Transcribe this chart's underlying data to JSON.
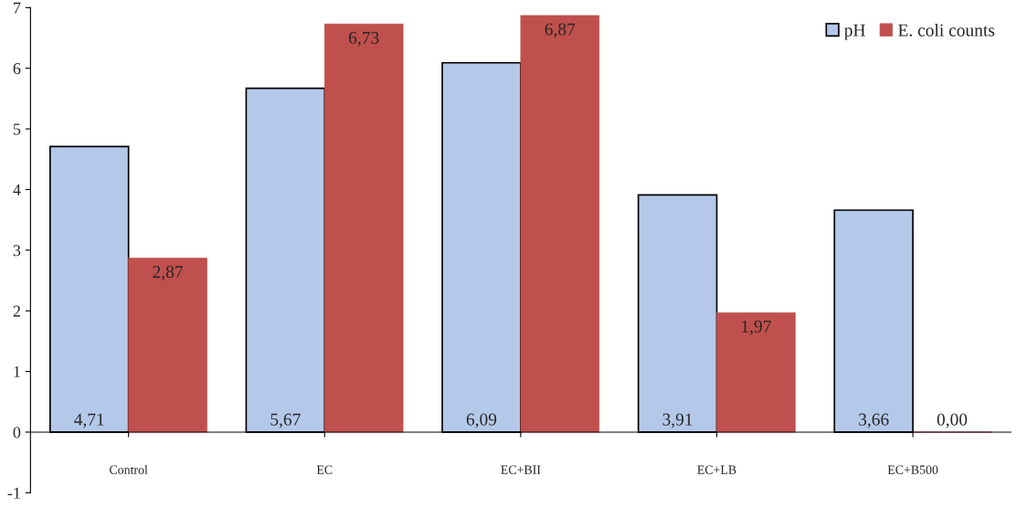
{
  "chart_data": {
    "type": "bar",
    "categories": [
      "Control",
      "EC",
      "EC+BII",
      "EC+LB",
      "EC+B500"
    ],
    "series": [
      {
        "name": "pH",
        "color": "#b4c9ea",
        "values": [
          4.71,
          5.67,
          6.09,
          3.91,
          3.66
        ],
        "value_labels": [
          "4,71",
          "5,67",
          "6,09",
          "3,91",
          "3,66"
        ]
      },
      {
        "name": "E. coli counts",
        "color": "#c0504d",
        "values": [
          2.87,
          6.73,
          6.87,
          1.97,
          0.0
        ],
        "value_labels": [
          "2,87",
          "6,73",
          "6,87",
          "1,97",
          "0,00"
        ]
      }
    ],
    "ylim": [
      -1,
      7
    ],
    "yticks": [
      -1,
      0,
      1,
      2,
      3,
      4,
      5,
      6,
      7
    ],
    "grid": false,
    "legend": "top right"
  }
}
